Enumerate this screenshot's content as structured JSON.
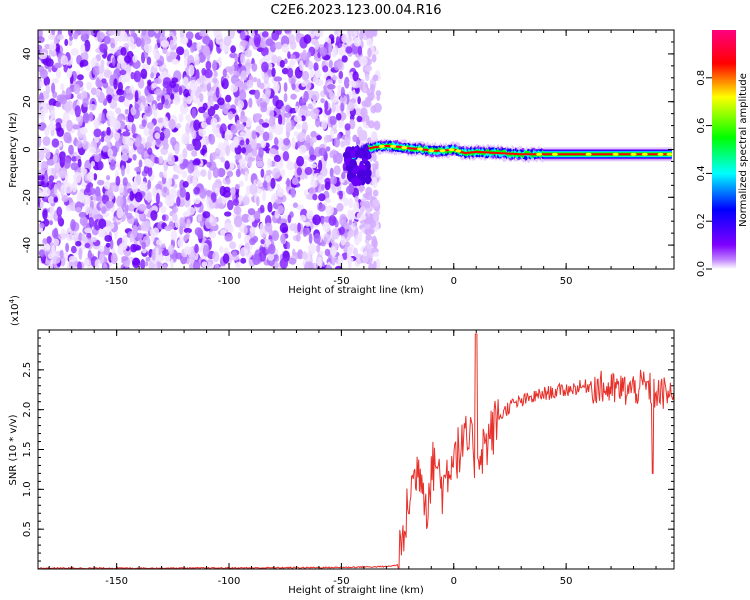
{
  "figure": {
    "title": "C2E6.2023.123.00.04.R16"
  },
  "colorbar": {
    "label": "Normalized spectral amplitude",
    "range": [
      0,
      1
    ],
    "ticks": [
      "0.0",
      "0.2",
      "0.4",
      "0.6",
      "0.8"
    ]
  },
  "chart_data": [
    {
      "type": "heatmap",
      "xlabel": "Height of straight line (km)",
      "ylabel": "Frequency (Hz)",
      "xlim": [
        -185,
        98
      ],
      "ylim": [
        -50,
        50
      ],
      "xticks": [
        "-150",
        "-100",
        "-50",
        "0",
        "50"
      ],
      "yticks": [
        "-40",
        "-20",
        "0",
        "20",
        "40"
      ],
      "colormap": [
        "#ffffff",
        "#7f00ff",
        "#0000ff",
        "#00ffff",
        "#00ff00",
        "#ffff00",
        "#ff0000",
        "#ff0080"
      ],
      "noise_region_x": [
        -185,
        -37
      ],
      "signal_ridge": {
        "x": [
          -47,
          -40,
          -35,
          -30,
          -25,
          -20,
          -15,
          -10,
          -5,
          0,
          5,
          10,
          20,
          30,
          40,
          50,
          60,
          70,
          80,
          90,
          97
        ],
        "frequency": [
          -4,
          0,
          1,
          1.5,
          1.2,
          0.5,
          0.2,
          -0.5,
          -0.5,
          0,
          -1.5,
          -1,
          -1.5,
          -2,
          -2,
          -2,
          -2,
          -2,
          -2,
          -2,
          -2
        ]
      },
      "grid": false
    },
    {
      "type": "line",
      "xlabel": "Height of straight line (km)",
      "ylabel": "SNR (10 * v/v)",
      "y_multiplier": "(x10",
      "y_multiplier_exp": "4",
      "xlim": [
        -185,
        98
      ],
      "ylim": [
        0,
        30000
      ],
      "xticks": [
        "-150",
        "-100",
        "-50",
        "0",
        "50"
      ],
      "yticks": [
        "0.5",
        "1.0",
        "1.5",
        "2.0",
        "2.5"
      ],
      "color": "#e8302a",
      "grid": false,
      "series": [
        {
          "x": [
            -185,
            -150,
            -100,
            -50,
            -30,
            -25,
            -24,
            -22,
            -20,
            -18,
            -15,
            -12,
            -10,
            -8,
            -5,
            -2,
            0,
            3,
            5,
            8,
            10,
            12,
            15,
            20,
            25,
            30,
            40,
            50,
            60,
            70,
            80,
            85,
            90,
            95,
            98
          ],
          "y": [
            100,
            100,
            120,
            200,
            300,
            500,
            1500,
            4000,
            9000,
            11000,
            13000,
            8000,
            12000,
            14000,
            10000,
            13000,
            15000,
            14500,
            16000,
            15500,
            14000,
            15000,
            16000,
            19000,
            20500,
            21000,
            22000,
            22500,
            23000,
            22500,
            22500,
            23000,
            22000,
            22000,
            22000
          ]
        }
      ]
    }
  ]
}
